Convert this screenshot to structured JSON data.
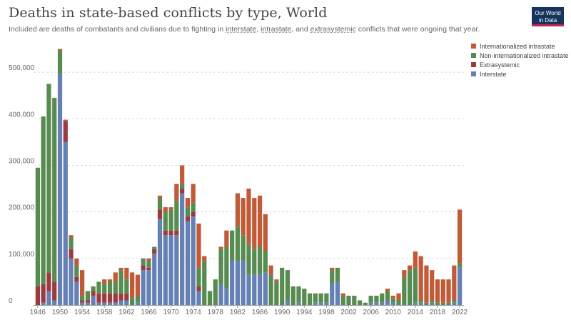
{
  "title": "Deaths in state-based conflicts by type, World",
  "subtitle": {
    "prefix": "Included are deaths of combatants and civilians due to fighting in ",
    "interstate": "interstate",
    "sep1": ", ",
    "intrastate": "intrastate",
    "sep2": ", and ",
    "extrasystemic": "extrasystemic",
    "suffix": " conflicts that were ongoing that year."
  },
  "logo": {
    "line1": "Our World",
    "line2": "in Data"
  },
  "colors": {
    "Internationalized intrastate": "#c05a37",
    "Non-internationalized intrastate": "#578b50",
    "Extrasystemic": "#9b3a3f",
    "Interstate": "#6580b5"
  },
  "chart_data": {
    "type": "bar",
    "stacked": true,
    "grid": true,
    "legend_position": "top-right",
    "x_ticks": [
      "1946",
      "1950",
      "1954",
      "1958",
      "1962",
      "1966",
      "1970",
      "1974",
      "1978",
      "1982",
      "1986",
      "1990",
      "1994",
      "1998",
      "2002",
      "2006",
      "2010",
      "2014",
      "2018",
      "2022"
    ],
    "y_ticks": [
      "0",
      "100,000",
      "200,000",
      "300,000",
      "400,000",
      "500,000"
    ],
    "ylim": [
      0,
      560000
    ],
    "x": [
      1946,
      1947,
      1948,
      1949,
      1950,
      1951,
      1952,
      1953,
      1954,
      1955,
      1956,
      1957,
      1958,
      1959,
      1960,
      1961,
      1962,
      1963,
      1964,
      1965,
      1966,
      1967,
      1968,
      1969,
      1970,
      1971,
      1972,
      1973,
      1974,
      1975,
      1976,
      1977,
      1978,
      1979,
      1980,
      1981,
      1982,
      1983,
      1984,
      1985,
      1986,
      1987,
      1988,
      1989,
      1990,
      1991,
      1992,
      1993,
      1994,
      1995,
      1996,
      1997,
      1998,
      1999,
      2000,
      2001,
      2002,
      2003,
      2004,
      2005,
      2006,
      2007,
      2008,
      2009,
      2010,
      2011,
      2012,
      2013,
      2014,
      2015,
      2016,
      2017,
      2018,
      2019,
      2020,
      2021,
      2022
    ],
    "series": [
      {
        "name": "Interstate",
        "values": [
          0,
          5000,
          30000,
          10000,
          497000,
          350000,
          100000,
          50000,
          5000,
          5000,
          20000,
          5000,
          5000,
          5000,
          5000,
          10000,
          10000,
          0,
          5000,
          75000,
          75000,
          110000,
          185000,
          150000,
          150000,
          150000,
          240000,
          180000,
          190000,
          30000,
          0,
          0,
          0,
          45000,
          35000,
          95000,
          95000,
          95000,
          65000,
          65000,
          65000,
          70000,
          0,
          0,
          0,
          10000,
          0,
          5000,
          0,
          0,
          5000,
          5000,
          5000,
          45000,
          50000,
          0,
          0,
          0,
          0,
          0,
          5000,
          5000,
          5000,
          10000,
          5000,
          0,
          0,
          0,
          5000,
          5000,
          0,
          5000,
          0,
          0,
          0,
          5000,
          80000
        ]
      },
      {
        "name": "Extrasystemic",
        "values": [
          40000,
          40000,
          40000,
          40000,
          0,
          45000,
          20000,
          10000,
          5000,
          5000,
          10000,
          20000,
          20000,
          20000,
          20000,
          15000,
          15000,
          0,
          0,
          10000,
          5000,
          10000,
          20000,
          10000,
          10000,
          10000,
          10000,
          10000,
          10000,
          10000,
          0,
          0,
          0,
          0,
          0,
          0,
          0,
          0,
          0,
          0,
          0,
          0,
          0,
          0,
          0,
          0,
          0,
          0,
          0,
          0,
          0,
          0,
          0,
          0,
          0,
          0,
          0,
          0,
          0,
          0,
          0,
          0,
          0,
          0,
          0,
          0,
          0,
          0,
          0,
          0,
          0,
          0,
          0,
          0,
          0,
          0,
          0
        ]
      },
      {
        "name": "Non-internationalized intrastate",
        "values": [
          255000,
          360000,
          405000,
          395000,
          50000,
          0,
          25000,
          25000,
          10000,
          20000,
          10000,
          25000,
          20000,
          25000,
          25000,
          50000,
          30000,
          15000,
          15000,
          15000,
          15000,
          5000,
          25000,
          40000,
          45000,
          65000,
          10000,
          20000,
          20000,
          40000,
          95000,
          30000,
          55000,
          75000,
          90000,
          65000,
          75000,
          55000,
          65000,
          55000,
          60000,
          45000,
          65000,
          50000,
          80000,
          65000,
          40000,
          35000,
          35000,
          25000,
          20000,
          20000,
          20000,
          30000,
          30000,
          20000,
          20000,
          20000,
          10000,
          5000,
          15000,
          15000,
          20000,
          20000,
          10000,
          10000,
          60000,
          75000,
          75000,
          5000,
          5000,
          5000,
          5000,
          5000,
          5000,
          5000,
          10000
        ]
      },
      {
        "name": "Internationalized intrastate",
        "values": [
          0,
          0,
          0,
          0,
          3000,
          3000,
          5000,
          15000,
          55000,
          0,
          0,
          0,
          10000,
          5000,
          20000,
          5000,
          25000,
          55000,
          45000,
          0,
          5000,
          0,
          5000,
          10000,
          5000,
          35000,
          40000,
          20000,
          40000,
          95000,
          10000,
          0,
          0,
          5000,
          35000,
          0,
          70000,
          80000,
          120000,
          110000,
          110000,
          80000,
          20000,
          5000,
          0,
          0,
          0,
          0,
          0,
          0,
          0,
          0,
          0,
          5000,
          0,
          5000,
          0,
          0,
          0,
          0,
          0,
          0,
          0,
          5000,
          5000,
          15000,
          15000,
          10000,
          35000,
          95000,
          80000,
          65000,
          50000,
          50000,
          50000,
          75000,
          115000
        ]
      }
    ]
  }
}
